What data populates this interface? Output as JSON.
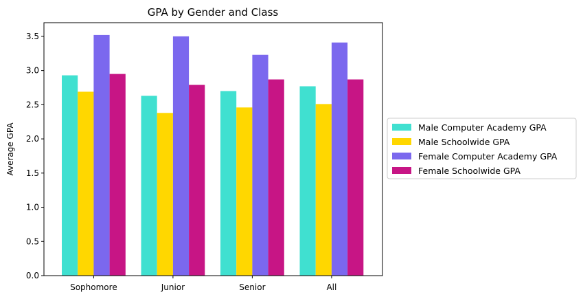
{
  "chart_data": {
    "type": "bar",
    "title": "GPA by Gender and Class",
    "xlabel": "",
    "ylabel": "Average GPA",
    "categories": [
      "Sophomore",
      "Junior",
      "Senior",
      "All"
    ],
    "ylim": [
      0,
      3.7
    ],
    "yticks": [
      "0.0",
      "0.5",
      "1.0",
      "1.5",
      "2.0",
      "2.5",
      "3.0",
      "3.5"
    ],
    "grid": false,
    "legend_position": "right-outside",
    "series": [
      {
        "name": "Male Computer Academy GPA",
        "color": "#40E0D0",
        "values": [
          2.93,
          2.63,
          2.7,
          2.77
        ]
      },
      {
        "name": "Male Schoolwide GPA",
        "color": "#FFD700",
        "values": [
          2.69,
          2.38,
          2.46,
          2.51
        ]
      },
      {
        "name": "Female Computer Academy GPA",
        "color": "#7B68EE",
        "values": [
          3.52,
          3.5,
          3.23,
          3.41
        ]
      },
      {
        "name": "Female Schoolwide GPA",
        "color": "#C71585",
        "values": [
          2.95,
          2.79,
          2.87,
          2.87
        ]
      }
    ]
  }
}
